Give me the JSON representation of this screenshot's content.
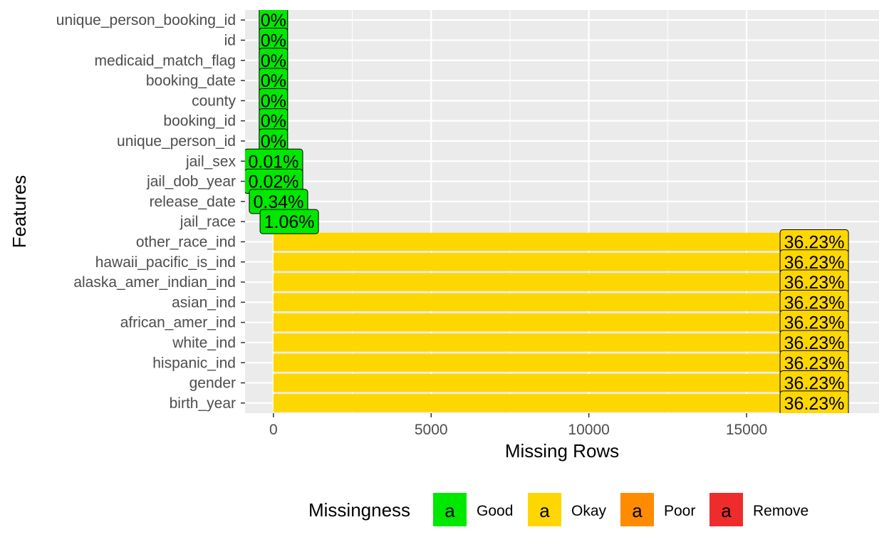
{
  "chart_data": {
    "type": "bar",
    "orientation": "horizontal",
    "xlabel": "Missing Rows",
    "ylabel": "Features",
    "xlim": [
      -900,
      19200
    ],
    "xticks": [
      0,
      5000,
      10000,
      15000
    ],
    "grid": true,
    "legend": {
      "title": "Missingness",
      "placement": "bottom",
      "key_glyph": "a",
      "entries": [
        {
          "label": "Good",
          "color": "#00E800"
        },
        {
          "label": "Okay",
          "color": "#FFD700"
        },
        {
          "label": "Poor",
          "color": "#FF8C00"
        },
        {
          "label": "Remove",
          "color": "#EE2C2C"
        }
      ]
    },
    "categories": [
      "unique_person_booking_id",
      "id",
      "medicaid_match_flag",
      "booking_date",
      "county",
      "booking_id",
      "unique_person_id",
      "jail_sex",
      "jail_dob_year",
      "release_date",
      "jail_race",
      "other_race_ind",
      "hawaii_pacific_is_ind",
      "alaska_amer_indian_ind",
      "asian_ind",
      "african_amer_ind",
      "white_ind",
      "hispanic_ind",
      "gender",
      "birth_year"
    ],
    "values": [
      0,
      0,
      0,
      0,
      0,
      0,
      0,
      3,
      5,
      161,
      502,
      17146,
      17146,
      17146,
      17146,
      17146,
      17146,
      17146,
      17146,
      17146
    ],
    "pct_labels": [
      "0%",
      "0%",
      "0%",
      "0%",
      "0%",
      "0%",
      "0%",
      "0.01%",
      "0.02%",
      "0.34%",
      "1.06%",
      "36.23%",
      "36.23%",
      "36.23%",
      "36.23%",
      "36.23%",
      "36.23%",
      "36.23%",
      "36.23%",
      "36.23%"
    ],
    "groups": [
      "Good",
      "Good",
      "Good",
      "Good",
      "Good",
      "Good",
      "Good",
      "Good",
      "Good",
      "Good",
      "Good",
      "Okay",
      "Okay",
      "Okay",
      "Okay",
      "Okay",
      "Okay",
      "Okay",
      "Okay",
      "Okay"
    ]
  }
}
